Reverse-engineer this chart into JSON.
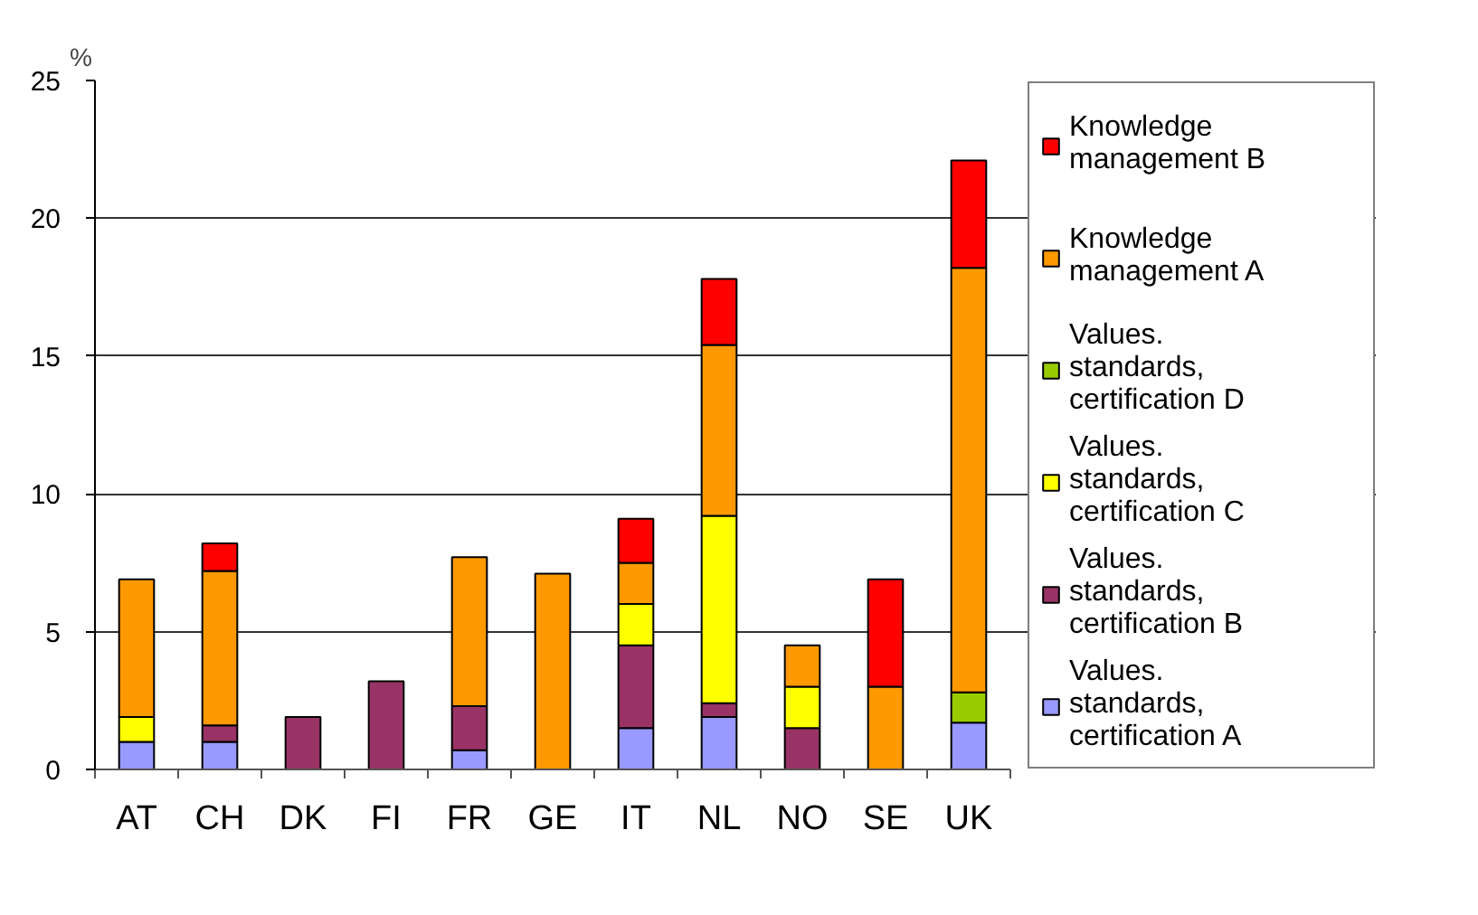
{
  "chart_data": {
    "type": "bar",
    "stacked": true,
    "ylabel": "%",
    "categories": [
      "AT",
      "CH",
      "DK",
      "FI",
      "FR",
      "GE",
      "IT",
      "NL",
      "NO",
      "SE",
      "UK"
    ],
    "series": [
      {
        "name": "Values. standards, certification A",
        "color": "#9999ff",
        "values": [
          1.0,
          1.0,
          null,
          null,
          0.7,
          null,
          1.5,
          1.9,
          null,
          null,
          1.7
        ]
      },
      {
        "name": "Values. standards, certification B",
        "color": "#993366",
        "values": [
          null,
          0.6,
          1.9,
          3.2,
          1.6,
          null,
          3.0,
          0.5,
          1.5,
          null,
          null
        ]
      },
      {
        "name": "Values. standards, certification C",
        "color": "#ffff00",
        "values": [
          0.9,
          null,
          null,
          null,
          null,
          null,
          1.5,
          6.8,
          1.5,
          null,
          null
        ]
      },
      {
        "name": "Values. standards, certification D",
        "color": "#99cc00",
        "values": [
          null,
          null,
          null,
          null,
          null,
          null,
          null,
          null,
          null,
          null,
          1.1
        ]
      },
      {
        "name": "Knowledge management A",
        "color": "#ff9900",
        "values": [
          5.0,
          5.6,
          null,
          null,
          5.4,
          7.1,
          1.5,
          6.2,
          1.5,
          3.0,
          15.4
        ]
      },
      {
        "name": "Knowledge management B",
        "color": "#ff0000",
        "values": [
          null,
          1.0,
          null,
          null,
          null,
          null,
          1.6,
          2.4,
          null,
          3.9,
          3.9
        ]
      }
    ],
    "ylim": [
      0,
      25
    ],
    "yticks": [
      0,
      5,
      10,
      15,
      20,
      25
    ],
    "grid": "y",
    "legend": "right"
  }
}
